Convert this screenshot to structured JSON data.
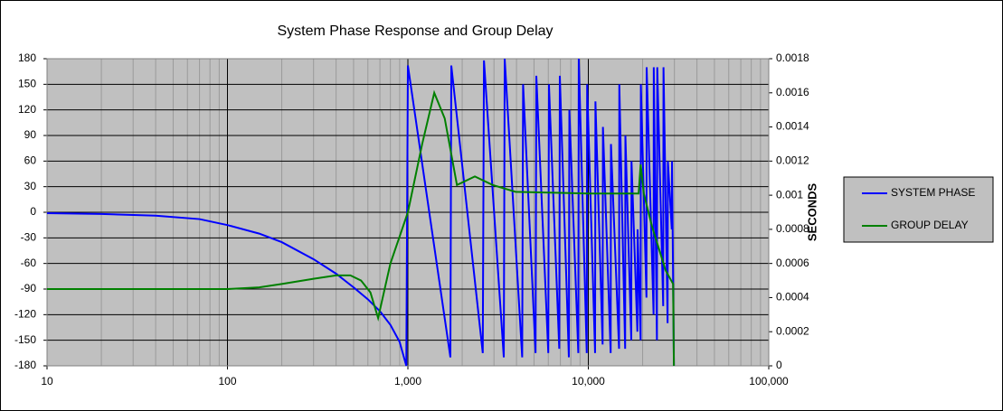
{
  "chart_data": {
    "type": "line",
    "title": "System Phase Response and Group Delay",
    "y2label": "SECONDS",
    "xscale": "log",
    "xlim": [
      10,
      100000
    ],
    "xticks": [
      10,
      100,
      {
        "value": 1000,
        "label": "1,000"
      },
      {
        "value": 10000,
        "label": "10,000"
      },
      {
        "value": 100000,
        "label": "100,000"
      }
    ],
    "ylim": [
      -180,
      180
    ],
    "yticks": [
      -180,
      -150,
      -120,
      -90,
      -60,
      -30,
      0,
      30,
      60,
      90,
      120,
      150,
      180
    ],
    "y2lim": [
      0,
      0.0018
    ],
    "y2ticks": [
      0,
      0.0002,
      0.0004,
      0.0006,
      0.0008,
      0.001,
      0.0012,
      0.0014,
      0.0016,
      0.0018
    ],
    "grid": true,
    "legend": "right",
    "series": [
      {
        "name": "SYSTEM PHASE",
        "color": "#0000ff",
        "x": [
          10,
          20,
          40,
          70,
          100,
          150,
          200,
          300,
          400,
          500,
          600,
          700,
          800,
          900,
          980,
          1000,
          1720,
          1740,
          2600,
          2640,
          3400,
          3440,
          4300,
          4350,
          5100,
          5150,
          6000,
          6050,
          6900,
          6950,
          7800,
          7850,
          8800,
          8850,
          9800,
          9850,
          10900,
          10950,
          12000,
          12050,
          13300,
          13350,
          14800,
          14850,
          16000,
          16050,
          17300,
          17350,
          18700,
          18750,
          19500,
          19550,
          21000,
          21050,
          23000,
          23050,
          24000,
          24100,
          26000,
          26100,
          27500,
          27600,
          29000,
          29100,
          29800
        ],
        "values": [
          -1,
          -2,
          -4,
          -8,
          -15,
          -25,
          -35,
          -55,
          -72,
          -88,
          -102,
          -116,
          -132,
          -152,
          -180,
          172,
          -170,
          172,
          -165,
          178,
          -170,
          180,
          -170,
          150,
          -165,
          160,
          -165,
          150,
          -160,
          160,
          -170,
          120,
          -165,
          180,
          -165,
          150,
          -165,
          130,
          -155,
          100,
          -165,
          80,
          -160,
          150,
          -160,
          90,
          -150,
          60,
          -140,
          -20,
          -150,
          150,
          -100,
          170,
          -120,
          170,
          -150,
          170,
          -110,
          170,
          -130,
          60,
          -20,
          60,
          -180
        ]
      },
      {
        "name": "GROUP DELAY",
        "color": "#008000",
        "axis": "y2",
        "x": [
          10,
          100,
          150,
          200,
          300,
          400,
          480,
          550,
          620,
          684,
          800,
          1000,
          1200,
          1400,
          1600,
          1870,
          2350,
          2950,
          3950,
          10000,
          19000,
          19500,
          20300,
          22500,
          26800,
          29500,
          29800
        ],
        "values": [
          0.00045,
          0.00045,
          0.00046,
          0.00048,
          0.00051,
          0.00053,
          0.00053,
          0.0005,
          0.00043,
          0.00028,
          0.0006,
          0.0009,
          0.0013,
          0.0016,
          0.00145,
          0.00106,
          0.00111,
          0.00106,
          0.00102,
          0.00101,
          0.00101,
          0.00118,
          0.00101,
          0.00082,
          0.00056,
          0.00048,
          0
        ]
      }
    ]
  }
}
